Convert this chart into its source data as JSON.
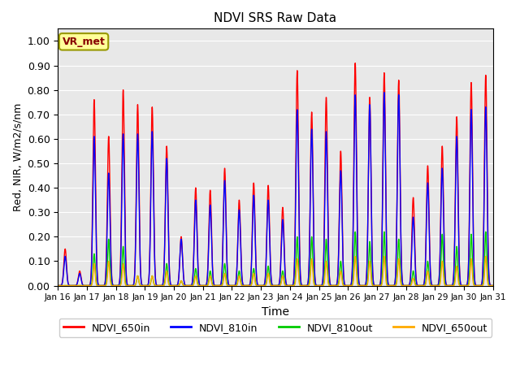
{
  "title": "NDVI SRS Raw Data",
  "xlabel": "Time",
  "ylabel": "Red, NIR, W/m2/s/nm",
  "ylim": [
    0.0,
    1.05
  ],
  "yticks": [
    0.0,
    0.1,
    0.2,
    0.3,
    0.4,
    0.5,
    0.6,
    0.7,
    0.8,
    0.9,
    1.0
  ],
  "xtick_labels": [
    "Jan 16",
    "Jan 17",
    "Jan 18",
    "Jan 19",
    "Jan 20",
    "Jan 21",
    "Jan 22",
    "Jan 23",
    "Jan 24",
    "Jan 25",
    "Jan 26",
    "Jan 27",
    "Jan 28",
    "Jan 29",
    "Jan 30",
    "Jan 31"
  ],
  "bg_color": "#e8e8e8",
  "line_colors": {
    "NDVI_650in": "#ff0000",
    "NDVI_810in": "#0000ff",
    "NDVI_810out": "#00cc00",
    "NDVI_650out": "#ffaa00"
  },
  "annotation_text": "VR_met",
  "annotation_color": "#880000",
  "annotation_bg": "#ffff99",
  "annotation_border": "#999900",
  "spikes_650in": [
    0.15,
    0.06,
    0.76,
    0.61,
    0.8,
    0.74,
    0.73,
    0.57,
    0.2,
    0.4,
    0.39,
    0.48,
    0.35,
    0.42,
    0.41,
    0.32,
    0.88,
    0.71,
    0.77,
    0.55,
    0.91,
    0.77,
    0.87,
    0.84,
    0.36,
    0.49,
    0.57,
    0.69,
    0.83,
    0.86
  ],
  "spikes_810in": [
    0.12,
    0.05,
    0.61,
    0.46,
    0.62,
    0.62,
    0.63,
    0.52,
    0.19,
    0.35,
    0.33,
    0.43,
    0.31,
    0.37,
    0.35,
    0.27,
    0.72,
    0.64,
    0.63,
    0.47,
    0.78,
    0.74,
    0.79,
    0.78,
    0.28,
    0.42,
    0.48,
    0.61,
    0.72,
    0.73
  ],
  "spikes_810out": [
    0.0,
    0.0,
    0.13,
    0.19,
    0.16,
    0.04,
    0.04,
    0.09,
    0.02,
    0.07,
    0.06,
    0.09,
    0.06,
    0.07,
    0.08,
    0.06,
    0.2,
    0.2,
    0.19,
    0.1,
    0.22,
    0.18,
    0.22,
    0.19,
    0.06,
    0.1,
    0.21,
    0.16,
    0.21,
    0.22
  ],
  "spikes_650out": [
    0.0,
    0.0,
    0.09,
    0.1,
    0.09,
    0.04,
    0.04,
    0.06,
    0.02,
    0.04,
    0.04,
    0.05,
    0.04,
    0.05,
    0.05,
    0.04,
    0.11,
    0.11,
    0.1,
    0.06,
    0.12,
    0.1,
    0.12,
    0.11,
    0.03,
    0.06,
    0.1,
    0.08,
    0.11,
    0.12
  ]
}
